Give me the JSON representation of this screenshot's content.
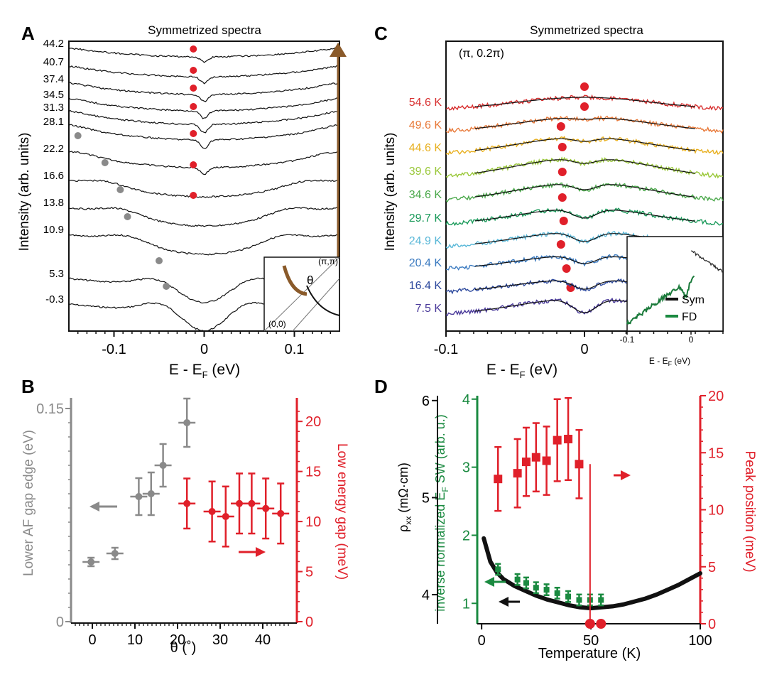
{
  "colors": {
    "black": "#111111",
    "gray": "#8a8a8a",
    "red": "#e0202a",
    "green": "#1a8a40",
    "brown": "#8a5a2a"
  },
  "chart_data": [
    {
      "panel": "A",
      "type": "line",
      "title": "Symmetrized spectra",
      "xlabel": "E - E",
      "xlabel_sub": "F",
      "xlabel_unit": " (eV)",
      "ylabel": "Intensity (arb. units)",
      "xlim": [
        -0.15,
        0.15
      ],
      "xticks": [
        "-0.1",
        "0",
        "0.1"
      ],
      "xtick_values": [
        -0.1,
        0,
        0.1
      ],
      "series_labels": [
        "-0.3",
        "5.3",
        "10.9",
        "13.8",
        "16.6",
        "22.2",
        "28.1",
        "31.3",
        "34.5",
        "37.4",
        "40.7",
        "44.2"
      ],
      "gap_edge_energy": [
        -0.042,
        -0.05,
        -0.085,
        -0.093,
        -0.11,
        -0.14
      ],
      "low_energy_peak": [
        -0.012,
        -0.012,
        -0.012,
        -0.012,
        -0.012,
        -0.012
      ],
      "inset": {
        "corner_top": "(π,π)",
        "corner_bottom": "(0,0)",
        "angle_label": "θ"
      }
    },
    {
      "panel": "B",
      "type": "scatter",
      "xlabel": "θ (˚)",
      "xticks": [
        "0",
        "10",
        "20",
        "30",
        "40"
      ],
      "xtick_values": [
        0,
        10,
        20,
        30,
        40
      ],
      "xlim": [
        -5,
        48
      ],
      "ylabel_left": "Lower AF gap edge (eV)",
      "ylim_left": [
        0,
        0.155
      ],
      "yticks_left": [
        "0",
        "0.15"
      ],
      "ytick_values_left": [
        0,
        0.15
      ],
      "ylabel_right": "Low energy gap (meV)",
      "ylim_right": [
        0,
        22
      ],
      "yticks_right": [
        "0",
        "5",
        "10",
        "15",
        "20"
      ],
      "ytick_values_right": [
        0,
        5,
        10,
        15,
        20
      ],
      "series": [
        {
          "name": "Lower AF gap edge",
          "axis": "left",
          "color": "gray",
          "x": [
            -0.3,
            5.3,
            10.9,
            13.8,
            16.6,
            22.2
          ],
          "y": [
            0.042,
            0.048,
            0.088,
            0.09,
            0.11,
            0.14
          ],
          "xerr": 2,
          "yerr": [
            0.003,
            0.004,
            0.013,
            0.015,
            0.015,
            0.017
          ]
        },
        {
          "name": "Low energy gap",
          "axis": "right",
          "color": "red",
          "x": [
            22.2,
            28.1,
            31.3,
            34.5,
            37.4,
            40.7,
            44.2
          ],
          "y": [
            11.8,
            11.0,
            10.5,
            11.8,
            11.8,
            11.3,
            10.8
          ],
          "xerr": 2,
          "yerr": [
            2.5,
            3,
            3,
            3,
            3,
            3,
            3
          ]
        }
      ]
    },
    {
      "panel": "C",
      "type": "line",
      "title": "Symmetrized spectra",
      "annotation": "(π, 0.2π)",
      "xlabel": "E - E",
      "xlabel_sub": "F",
      "xlabel_unit": " (eV)",
      "ylabel": "Intensity (arb. units)",
      "xlim": [
        -0.1,
        0.1
      ],
      "xticks": [
        "-0.1",
        "0"
      ],
      "xtick_values": [
        -0.1,
        0
      ],
      "temperatures": [
        "7.5 K",
        "16.4 K",
        "20.4 K",
        "24.9 K",
        "29.7 K",
        "34.6 K",
        "39.6 K",
        "44.6 K",
        "49.6 K",
        "54.6 K"
      ],
      "series_colors": [
        "#4a3a9a",
        "#2e4a9e",
        "#3a7ac0",
        "#5ab8d8",
        "#1a9a5a",
        "#4aa84a",
        "#9ac83a",
        "#e8b020",
        "#e87a3a",
        "#d83030"
      ],
      "peak_position": [
        -0.01,
        -0.013,
        -0.017,
        -0.015,
        -0.016,
        -0.016,
        -0.016,
        -0.017,
        0.0,
        0.0
      ],
      "inset": {
        "xlabel": "E - E",
        "xlabel_sub": "F",
        "xlabel_unit": " (eV)",
        "xticks": [
          "-0.1",
          "0"
        ],
        "legend": [
          "Sym",
          "FD"
        ]
      }
    },
    {
      "panel": "D",
      "type": "scatter",
      "xlabel": "Temperature (K)",
      "xlim": [
        -2,
        100
      ],
      "xticks": [
        "0",
        "50",
        "100"
      ],
      "xtick_values": [
        0,
        50,
        100
      ],
      "ylabel_rho": "ρ",
      "ylabel_rho_sub": "xx",
      "ylabel_rho_unit": " (mΩ·cm)",
      "ylim_rho": [
        3.7,
        6.05
      ],
      "yticks_rho": [
        "4",
        "5",
        "6"
      ],
      "ytick_values_rho": [
        4,
        5,
        6
      ],
      "ylabel_sw": "inverse normalized E",
      "ylabel_sw_sub": "F",
      "ylabel_sw_unit": " SW (arb. u.)",
      "ylim_sw": [
        0.7,
        4.05
      ],
      "yticks_sw": [
        "1",
        "2",
        "3",
        "4"
      ],
      "ytick_values_sw": [
        1,
        2,
        3,
        4
      ],
      "ylabel_peak": "Peak position (meV)",
      "ylim_peak": [
        0,
        20
      ],
      "yticks_peak": [
        "0",
        "5",
        "10",
        "15",
        "20"
      ],
      "ytick_values_peak": [
        0,
        5,
        10,
        15,
        20
      ],
      "peak_series": {
        "x": [
          7.5,
          16.4,
          20.4,
          24.9,
          29.7,
          34.6,
          39.6,
          44.6,
          49.6,
          54.6
        ],
        "y": [
          12.7,
          13.2,
          14.2,
          14.6,
          14.3,
          16.1,
          16.2,
          14.0,
          0,
          0
        ],
        "yerr": [
          2.8,
          3,
          3,
          3,
          3,
          3.6,
          3.6,
          3,
          0,
          0
        ]
      },
      "sw_series": {
        "x": [
          7.5,
          16.4,
          20.4,
          24.9,
          29.7,
          34.6,
          39.6,
          44.6,
          49.6,
          54.6
        ],
        "y": [
          1.5,
          1.35,
          1.3,
          1.23,
          1.2,
          1.15,
          1.1,
          1.05,
          1.05,
          1.05
        ],
        "yerr": 0.08
      },
      "rho_curve": {
        "x": [
          1,
          4,
          7,
          10,
          15,
          20,
          25,
          30,
          35,
          40,
          45,
          50,
          55,
          60,
          65,
          70,
          75,
          80,
          85,
          90,
          95,
          100
        ],
        "y": [
          4.58,
          4.34,
          4.23,
          4.16,
          4.09,
          4.04,
          3.99,
          3.95,
          3.92,
          3.89,
          3.87,
          3.86,
          3.87,
          3.88,
          3.9,
          3.93,
          3.96,
          4.0,
          4.05,
          4.1,
          4.16,
          4.22
        ]
      }
    }
  ]
}
